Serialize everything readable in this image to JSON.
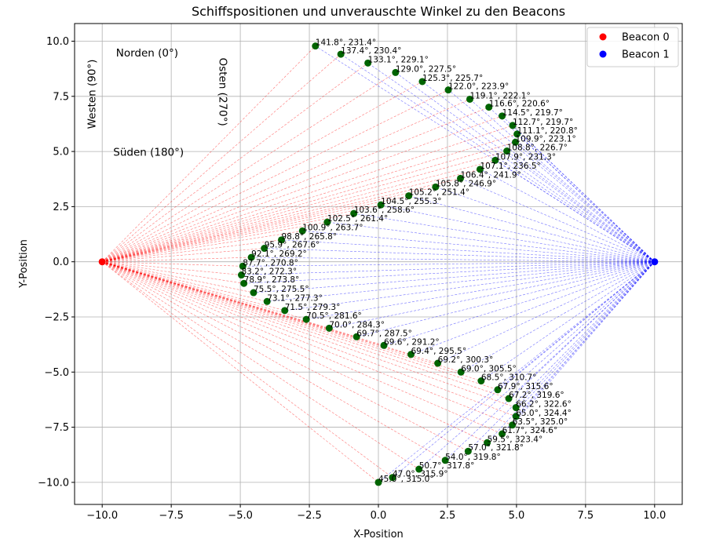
{
  "chart_data": {
    "type": "scatter",
    "title": "Schiffspositionen und unverauschte Winkel zu den Beacons",
    "xlabel": "X-Position",
    "ylabel": "Y-Position",
    "xlim": [
      -11,
      11
    ],
    "ylim": [
      -11,
      10.8
    ],
    "xticks": [
      -10,
      -7.5,
      -5,
      -2.5,
      0,
      2.5,
      5,
      7.5,
      10
    ],
    "xtick_labels": [
      "−10.0",
      "−7.5",
      "−5.0",
      "−2.5",
      "0.0",
      "2.5",
      "5.0",
      "7.5",
      "10.0"
    ],
    "yticks": [
      -10,
      -7.5,
      -5,
      -2.5,
      0,
      2.5,
      5,
      7.5,
      10
    ],
    "ytick_labels": [
      "−10.0",
      "−7.5",
      "−5.0",
      "−2.5",
      "0.0",
      "2.5",
      "5.0",
      "7.5",
      "10.0"
    ],
    "grid": true,
    "legend_position": "top-right",
    "beacons": [
      {
        "name": "Beacon 0",
        "x": -10,
        "y": 0,
        "color": "#ff0000"
      },
      {
        "name": "Beacon 1",
        "x": 10,
        "y": 0,
        "color": "#0000ff"
      }
    ],
    "ship_color": "#006400",
    "ray_colors": {
      "beacon0": "#ff0000",
      "beacon1": "#0000ff"
    },
    "annotations": [
      {
        "text": "Norden (0°)",
        "x": -9.5,
        "y": 9.3,
        "rotate": 0
      },
      {
        "text": "Süden (180°)",
        "x": -9.6,
        "y": 4.8,
        "rotate": 0
      },
      {
        "text": "Westen (90°)",
        "x": -10.25,
        "y": 7.6,
        "rotate": -90
      },
      {
        "text": "Osten (270°)",
        "x": -5.75,
        "y": 7.7,
        "rotate": 90
      }
    ],
    "points": [
      {
        "x": -2.28,
        "y": 9.78,
        "label": "141.8°, 231.4°"
      },
      {
        "x": -1.36,
        "y": 9.41,
        "label": "137.4°, 230.4°"
      },
      {
        "x": -0.38,
        "y": 9.01,
        "label": "133.1°, 229.1°"
      },
      {
        "x": 0.62,
        "y": 8.58,
        "label": "129.0°, 227.5°"
      },
      {
        "x": 1.59,
        "y": 8.17,
        "label": "125.3°, 225.7°"
      },
      {
        "x": 2.53,
        "y": 7.79,
        "label": "122.0°, 223.9°"
      },
      {
        "x": 3.31,
        "y": 7.37,
        "label": "119.1°, 222.1°"
      },
      {
        "x": 4.0,
        "y": 7.01,
        "label": "116.6°, 220.6°"
      },
      {
        "x": 4.48,
        "y": 6.61,
        "label": "114.5°, 219.7°"
      },
      {
        "x": 4.86,
        "y": 6.18,
        "label": "112.7°, 219.7°"
      },
      {
        "x": 5.02,
        "y": 5.79,
        "label": "111.1°, 220.8°"
      },
      {
        "x": 4.96,
        "y": 5.42,
        "label": "109.9°, 223.1°"
      },
      {
        "x": 4.65,
        "y": 5.02,
        "label": "108.8°, 226.7°"
      },
      {
        "x": 4.23,
        "y": 4.6,
        "label": "107.9°, 231.3°"
      },
      {
        "x": 3.68,
        "y": 4.19,
        "label": "107.1°, 236.5°"
      },
      {
        "x": 2.97,
        "y": 3.78,
        "label": "106.4°, 241.9°"
      },
      {
        "x": 2.07,
        "y": 3.39,
        "label": "105.8°, 246.9°"
      },
      {
        "x": 1.1,
        "y": 2.99,
        "label": "105.2°, 251.4°"
      },
      {
        "x": 0.09,
        "y": 2.58,
        "label": "104.5°, 255.3°"
      },
      {
        "x": -0.89,
        "y": 2.19,
        "label": "103.6°, 258.6°"
      },
      {
        "x": -1.85,
        "y": 1.8,
        "label": "102.5°, 261.4°"
      },
      {
        "x": -2.75,
        "y": 1.4,
        "label": "100.9°, 263.7°"
      },
      {
        "x": -3.51,
        "y": 0.99,
        "label": "98.8°, 265.8°"
      },
      {
        "x": -4.13,
        "y": 0.61,
        "label": "95.9°, 267.6°"
      },
      {
        "x": -4.6,
        "y": 0.2,
        "label": "92.1°, 269.2°"
      },
      {
        "x": -4.91,
        "y": -0.2,
        "label": "87.7°, 270.8°"
      },
      {
        "x": -4.96,
        "y": -0.6,
        "label": "83.2°, 272.3°"
      },
      {
        "x": -4.87,
        "y": -0.98,
        "label": "78.9°, 273.8°"
      },
      {
        "x": -4.52,
        "y": -1.4,
        "label": "75.5°, 275.5°"
      },
      {
        "x": -4.03,
        "y": -1.8,
        "label": "73.1°, 277.3°"
      },
      {
        "x": -3.39,
        "y": -2.21,
        "label": "71.5°, 279.3°"
      },
      {
        "x": -2.61,
        "y": -2.61,
        "label": "70.5°, 281.6°"
      },
      {
        "x": -1.78,
        "y": -3.01,
        "label": "70.0°, 284.3°"
      },
      {
        "x": -0.79,
        "y": -3.4,
        "label": "69.7°, 287.5°"
      },
      {
        "x": 0.2,
        "y": -3.79,
        "label": "69.6°, 291.2°"
      },
      {
        "x": 1.18,
        "y": -4.2,
        "label": "69.4°, 295.5°"
      },
      {
        "x": 2.15,
        "y": -4.6,
        "label": "69.2°, 300.3°"
      },
      {
        "x": 2.99,
        "y": -5.0,
        "label": "69.0°, 305.5°"
      },
      {
        "x": 3.72,
        "y": -5.4,
        "label": "68.5°, 310.7°"
      },
      {
        "x": 4.32,
        "y": -5.8,
        "label": "67.9°, 315.6°"
      },
      {
        "x": 4.72,
        "y": -6.2,
        "label": "67.2°, 319.6°"
      },
      {
        "x": 4.98,
        "y": -6.61,
        "label": "66.2°, 322.6°"
      },
      {
        "x": 4.98,
        "y": -7.01,
        "label": "65.0°, 324.4°"
      },
      {
        "x": 4.85,
        "y": -7.4,
        "label": "63.5°, 325.0°"
      },
      {
        "x": 4.48,
        "y": -7.8,
        "label": "61.7°, 324.6°"
      },
      {
        "x": 3.94,
        "y": -8.2,
        "label": "59.5°, 323.4°"
      },
      {
        "x": 3.25,
        "y": -8.59,
        "label": "57.0°, 321.8°"
      },
      {
        "x": 2.42,
        "y": -9.0,
        "label": "54.0°, 319.8°"
      },
      {
        "x": 1.47,
        "y": -9.4,
        "label": "50.7°, 317.8°"
      },
      {
        "x": 0.51,
        "y": -9.78,
        "label": "47.0°, 315.9°"
      },
      {
        "x": 0.0,
        "y": -10.0,
        "label": "45.0°, 315.0°"
      }
    ]
  }
}
